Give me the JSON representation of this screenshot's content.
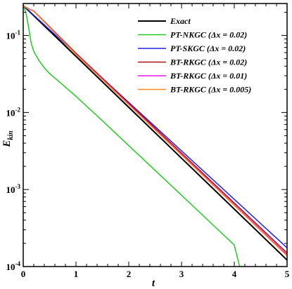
{
  "chart_data": {
    "type": "line",
    "xlabel": "t",
    "ylabel_main": "E",
    "ylabel_sub": "kin",
    "xlim": [
      0,
      5
    ],
    "ylim": [
      0.0001,
      0.26
    ],
    "yscale": "log",
    "grid": false,
    "legend_position": "top-right",
    "x_ticks": [
      0,
      1,
      2,
      3,
      4,
      5
    ],
    "x_tick_labels": [
      "0",
      "1",
      "2",
      "3",
      "4",
      "5"
    ],
    "y_ticks": [
      0.0001,
      0.001,
      0.01,
      0.1
    ],
    "y_tick_labels": [
      {
        "base": "10",
        "exp": "-4"
      },
      {
        "base": "10",
        "exp": "-3"
      },
      {
        "base": "10",
        "exp": "-2"
      },
      {
        "base": "10",
        "exp": "-1"
      }
    ],
    "series": [
      {
        "name": "Exact",
        "color": "#000000",
        "width": 2,
        "x": [
          0,
          1,
          2,
          3,
          4,
          5
        ],
        "y": [
          0.245,
          0.0535,
          0.01168,
          0.00255,
          0.000557,
          0.0001215
        ]
      },
      {
        "name": "PT-NKGC (Δx = 0.02)",
        "color": "#22cc22",
        "width": 1.5,
        "x": [
          0,
          0.05,
          0.1,
          0.15,
          0.2,
          0.3,
          0.4,
          0.5,
          0.6,
          0.7,
          0.8,
          1,
          1.5,
          2,
          2.5,
          3,
          3.5,
          4,
          4.1
        ],
        "y": [
          0.245,
          0.2,
          0.13,
          0.08,
          0.062,
          0.047,
          0.038,
          0.032,
          0.028,
          0.0245,
          0.0213,
          0.0162,
          0.0078,
          0.00372,
          0.00177,
          0.000842,
          0.0004,
          0.00019,
          0.0001
        ]
      },
      {
        "name": "PT-SKGC (Δx = 0.02)",
        "color": "#2222ee",
        "width": 1.5,
        "x": [
          0,
          1,
          2,
          3,
          4,
          5
        ],
        "y": [
          0.245,
          0.0576,
          0.0135,
          0.00318,
          0.000745,
          0.000175
        ]
      },
      {
        "name": "BT-RKGC (Δx = 0.02)",
        "color": "#aa1111",
        "width": 1.5,
        "x": [
          0,
          0.1,
          0.2,
          1,
          2,
          3,
          4,
          5
        ],
        "y": [
          0.245,
          0.222,
          0.208,
          0.0588,
          0.0132,
          0.00297,
          0.000668,
          0.00015
        ]
      },
      {
        "name": "BT-RKGC (Δx = 0.01)",
        "color": "#ee11ee",
        "width": 1.5,
        "x": [
          0,
          0.1,
          0.2,
          1,
          2,
          3,
          4,
          5
        ],
        "y": [
          0.245,
          0.222,
          0.207,
          0.0573,
          0.0128,
          0.00285,
          0.000635,
          0.000142
        ]
      },
      {
        "name": "BT-RKGC (Δx = 0.005)",
        "color": "#ff8822",
        "width": 1.5,
        "x": [
          0,
          0.1,
          0.2,
          1,
          2,
          3,
          4,
          5
        ],
        "y": [
          0.245,
          0.221,
          0.206,
          0.0566,
          0.0126,
          0.0028,
          0.000622,
          0.000138
        ]
      }
    ]
  }
}
